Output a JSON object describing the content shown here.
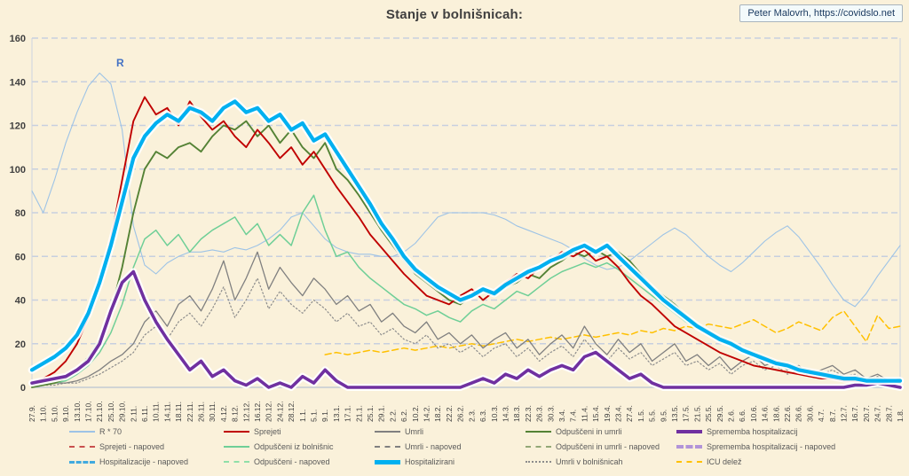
{
  "title": "Stanje v bolnišnicah:",
  "attribution": "Peter Malovrh, https://covidslo.net",
  "annotations": {
    "r_label": "R"
  },
  "chart_data": {
    "type": "line",
    "title": "Stanje v bolnišnicah:",
    "xlabel": "",
    "ylabel": "",
    "ylim": [
      0,
      160
    ],
    "yticks": [
      0,
      20,
      40,
      60,
      80,
      100,
      120,
      140,
      160
    ],
    "grid": "horizontal-dashed",
    "grid_color": "#c7cfdf",
    "background": "#faf1da",
    "legend_position": "bottom",
    "x_tick_labels": [
      "27.9.",
      "1.10.",
      "5.10.",
      "9.10.",
      "13.10.",
      "17.10.",
      "21.10.",
      "25.10.",
      "29.10.",
      "2.11.",
      "6.11.",
      "10.11.",
      "14.11.",
      "18.11.",
      "22.11.",
      "26.11.",
      "30.11.",
      "4.12.",
      "8.12.",
      "12.12.",
      "16.12.",
      "20.12.",
      "24.12.",
      "28.12.",
      "1.1.",
      "5.1.",
      "9.1.",
      "13.1.",
      "17.1.",
      "21.1.",
      "25.1.",
      "29.1.",
      "2.2.",
      "6.2.",
      "10.2.",
      "14.2.",
      "18.2.",
      "22.2.",
      "26.2.",
      "2.3.",
      "6.3.",
      "10.3.",
      "14.3.",
      "18.3.",
      "22.3.",
      "26.3.",
      "30.3.",
      "3.4.",
      "7.4.",
      "11.4.",
      "15.4.",
      "19.4.",
      "23.4.",
      "27.4.",
      "1.5.",
      "5.5.",
      "9.5.",
      "13.5.",
      "17.5.",
      "21.5.",
      "25.5.",
      "29.5.",
      "2.6.",
      "6.6.",
      "10.6.",
      "14.6.",
      "18.6.",
      "22.6.",
      "26.6.",
      "30.6.",
      "4.7.",
      "8.7.",
      "12.7.",
      "16.7.",
      "20.7.",
      "24.7.",
      "28.7.",
      "1.8."
    ],
    "series": [
      {
        "name": "R * 70",
        "color": "#9dc3e6",
        "style": "solid",
        "width": 1.1,
        "halo": false,
        "values": [
          90,
          80,
          95,
          112,
          126,
          138,
          144,
          139,
          118,
          74,
          56,
          52,
          57,
          60,
          62,
          62,
          63,
          62,
          64,
          63,
          65,
          68,
          72,
          78,
          80,
          74,
          68,
          64,
          62,
          61,
          61,
          60,
          60,
          62,
          66,
          72,
          78,
          80,
          80,
          80,
          80,
          79,
          77,
          74,
          72,
          70,
          68,
          66,
          63,
          59,
          56,
          54,
          55,
          58,
          62,
          66,
          70,
          73,
          70,
          65,
          60,
          56,
          53,
          57,
          62,
          67,
          71,
          74,
          69,
          62,
          55,
          47,
          40,
          37,
          43,
          51,
          58,
          65
        ]
      },
      {
        "name": "ICU delež",
        "color": "#ffc000",
        "style": "dashed",
        "width": 1.5,
        "halo": false,
        "values": [
          null,
          null,
          null,
          null,
          null,
          null,
          null,
          null,
          null,
          null,
          null,
          null,
          null,
          null,
          null,
          null,
          null,
          null,
          null,
          null,
          null,
          null,
          null,
          null,
          null,
          null,
          15,
          16,
          15,
          16,
          17,
          16,
          17,
          18,
          17,
          18,
          19,
          18,
          19,
          20,
          19,
          20,
          21,
          22,
          21,
          22,
          23,
          22,
          23,
          24,
          23,
          24,
          25,
          24,
          26,
          25,
          27,
          26,
          28,
          27,
          29,
          28,
          27,
          29,
          31,
          28,
          25,
          27,
          30,
          28,
          26,
          32,
          35,
          28,
          21,
          33,
          27,
          28
        ]
      },
      {
        "name": "Umrli v bolnišnicah",
        "color": "#8c8c8c",
        "style": "dotted",
        "width": 1.2,
        "halo": false,
        "values": [
          1,
          1,
          1,
          2,
          2,
          4,
          6,
          9,
          12,
          16,
          24,
          28,
          22,
          30,
          34,
          28,
          36,
          46,
          32,
          40,
          50,
          36,
          44,
          38,
          34,
          40,
          36,
          30,
          34,
          28,
          30,
          24,
          27,
          22,
          20,
          24,
          18,
          20,
          16,
          19,
          14,
          18,
          20,
          14,
          18,
          12,
          16,
          19,
          14,
          22,
          16,
          12,
          18,
          13,
          16,
          10,
          13,
          16,
          10,
          12,
          8,
          11,
          6,
          10,
          12,
          8,
          10,
          6,
          8,
          5,
          6,
          8,
          5,
          6,
          3,
          5,
          2,
          3
        ]
      },
      {
        "name": "Umrli",
        "color": "#808080",
        "style": "solid",
        "width": 1.3,
        "halo": false,
        "values": [
          1,
          1,
          2,
          2,
          3,
          5,
          8,
          12,
          15,
          20,
          30,
          35,
          28,
          38,
          42,
          35,
          45,
          58,
          40,
          50,
          62,
          45,
          55,
          48,
          42,
          50,
          45,
          38,
          42,
          35,
          38,
          30,
          34,
          28,
          25,
          30,
          22,
          25,
          20,
          24,
          18,
          22,
          25,
          18,
          22,
          15,
          20,
          24,
          18,
          28,
          20,
          15,
          22,
          16,
          20,
          12,
          16,
          20,
          12,
          15,
          10,
          14,
          8,
          12,
          15,
          10,
          12,
          8,
          10,
          6,
          8,
          10,
          6,
          8,
          4,
          6,
          3,
          4
        ]
      },
      {
        "name": "Odpuščeni iz bolnišnic",
        "color": "#6fcf97",
        "style": "solid",
        "width": 1.5,
        "halo": false,
        "values": [
          0,
          1,
          2,
          3,
          6,
          10,
          16,
          25,
          38,
          55,
          68,
          72,
          65,
          70,
          62,
          68,
          72,
          75,
          78,
          70,
          75,
          65,
          70,
          65,
          80,
          88,
          72,
          60,
          62,
          55,
          50,
          46,
          42,
          38,
          36,
          33,
          35,
          32,
          30,
          35,
          38,
          36,
          40,
          44,
          42,
          46,
          50,
          53,
          55,
          57,
          55,
          57,
          54,
          50,
          46,
          42,
          38,
          34,
          30,
          27,
          24,
          21,
          19,
          17,
          15,
          13,
          11,
          10,
          8,
          7,
          6,
          5,
          5,
          4,
          4,
          3,
          3,
          3
        ]
      },
      {
        "name": "Odpuščeni in umrli",
        "color": "#548235",
        "style": "solid",
        "width": 1.9,
        "halo": false,
        "values": [
          0,
          1,
          2,
          4,
          8,
          14,
          22,
          35,
          55,
          80,
          100,
          108,
          105,
          110,
          112,
          108,
          115,
          120,
          118,
          122,
          115,
          120,
          112,
          118,
          110,
          105,
          112,
          100,
          95,
          88,
          80,
          72,
          65,
          58,
          52,
          48,
          44,
          40,
          38,
          42,
          44,
          42,
          46,
          48,
          52,
          50,
          55,
          58,
          62,
          60,
          63,
          60,
          62,
          58,
          52,
          46,
          42,
          38,
          33,
          29,
          26,
          23,
          21,
          18,
          16,
          14,
          12,
          11,
          9,
          8,
          7,
          6,
          5,
          5,
          4,
          4,
          3,
          3
        ]
      },
      {
        "name": "Odpuščeni in umrli - napoved",
        "color": "#93a877",
        "style": "dashed",
        "width": 1.5,
        "halo": false,
        "values": [
          null,
          null,
          null,
          null,
          null,
          null,
          null,
          null,
          null,
          null,
          null,
          null,
          null,
          null,
          null,
          null,
          null,
          null,
          null,
          null,
          null,
          null,
          null,
          null,
          null,
          null,
          null,
          null,
          null,
          null,
          null,
          null,
          null,
          null,
          null,
          null,
          null,
          null,
          null,
          null,
          null,
          null,
          null,
          null,
          null,
          null,
          null,
          null,
          null,
          null,
          null,
          null,
          null,
          null,
          null,
          null,
          null,
          null,
          null,
          null,
          null,
          null,
          null,
          null,
          null,
          null,
          null,
          null,
          null,
          null,
          null,
          null,
          null,
          null,
          4,
          3,
          3,
          3
        ]
      },
      {
        "name": "Sprejeti",
        "color": "#c00000",
        "style": "solid",
        "width": 1.9,
        "halo": false,
        "values": [
          2,
          4,
          7,
          12,
          20,
          32,
          48,
          68,
          95,
          122,
          133,
          125,
          128,
          120,
          131,
          124,
          118,
          122,
          115,
          110,
          118,
          112,
          105,
          110,
          102,
          108,
          100,
          92,
          85,
          78,
          70,
          64,
          58,
          52,
          47,
          42,
          40,
          38,
          42,
          45,
          40,
          44,
          48,
          52,
          50,
          55,
          58,
          62,
          60,
          63,
          58,
          60,
          55,
          48,
          42,
          38,
          33,
          28,
          25,
          22,
          19,
          16,
          14,
          12,
          10,
          9,
          8,
          7,
          6,
          5,
          4,
          4,
          3,
          3,
          2,
          2,
          2,
          2
        ]
      },
      {
        "name": "Sprememba hospitalizacij",
        "color": "#7030a0",
        "style": "solid",
        "width": 3.6,
        "halo": true,
        "values": [
          2,
          3,
          4,
          5,
          8,
          12,
          20,
          35,
          48,
          53,
          40,
          30,
          22,
          15,
          8,
          12,
          5,
          8,
          3,
          1,
          4,
          0,
          2,
          0,
          5,
          2,
          8,
          3,
          0,
          0,
          0,
          0,
          0,
          0,
          0,
          0,
          0,
          0,
          0,
          2,
          4,
          2,
          6,
          4,
          8,
          5,
          8,
          10,
          8,
          14,
          16,
          12,
          8,
          4,
          6,
          2,
          0,
          0,
          0,
          0,
          0,
          0,
          0,
          0,
          0,
          0,
          0,
          0,
          0,
          0,
          0,
          0,
          0,
          1,
          1,
          2,
          1,
          0
        ]
      },
      {
        "name": "Hospitalizirani",
        "color": "#00b0f0",
        "style": "solid",
        "width": 4.2,
        "halo": true,
        "values": [
          8,
          11,
          14,
          18,
          24,
          34,
          48,
          65,
          85,
          105,
          115,
          121,
          125,
          122,
          128,
          126,
          122,
          128,
          131,
          126,
          128,
          122,
          125,
          118,
          121,
          113,
          116,
          108,
          100,
          92,
          84,
          75,
          68,
          60,
          54,
          50,
          46,
          43,
          40,
          42,
          45,
          43,
          47,
          50,
          53,
          55,
          58,
          60,
          63,
          65,
          62,
          65,
          60,
          55,
          50,
          45,
          40,
          36,
          32,
          28,
          25,
          22,
          20,
          17,
          15,
          13,
          11,
          10,
          8,
          7,
          6,
          5,
          4,
          4,
          3,
          3,
          3,
          3
        ]
      }
    ],
    "legend": [
      {
        "label": "R * 70",
        "color": "#9dc3e6",
        "dash": "solid",
        "weight": 2
      },
      {
        "label": "Sprejeti",
        "color": "#c00000",
        "dash": "solid",
        "weight": 2
      },
      {
        "label": "Umrli",
        "color": "#808080",
        "dash": "solid",
        "weight": 2
      },
      {
        "label": "Odpuščeni in umrli",
        "color": "#548235",
        "dash": "solid",
        "weight": 2
      },
      {
        "label": "Sprememba hospitalizacij",
        "color": "#7030a0",
        "dash": "solid",
        "weight": 4
      },
      {
        "label": "Sprejeti - napoved",
        "color": "#c9504e",
        "dash": "dashed",
        "weight": 2
      },
      {
        "label": "Odpuščeni iz bolnišnic",
        "color": "#6fcf97",
        "dash": "solid",
        "weight": 2
      },
      {
        "label": "Umrli - napoved",
        "color": "#808080",
        "dash": "dashed",
        "weight": 2
      },
      {
        "label": "Odpuščeni in umrli - napoved",
        "color": "#93a877",
        "dash": "dashed",
        "weight": 2
      },
      {
        "label": "Sprememba hospitalizacij - napoved",
        "color": "#b294d8",
        "dash": "dashed",
        "weight": 4
      },
      {
        "label": "Hospitalizacije - napoved",
        "color": "#41aadf",
        "dash": "dashed",
        "weight": 3
      },
      {
        "label": "Odpuščeni - napoved",
        "color": "#8fdfa8",
        "dash": "dashed",
        "weight": 2
      },
      {
        "label": "Hospitalizirani",
        "color": "#00b0f0",
        "dash": "solid",
        "weight": 5
      },
      {
        "label": "Umrli v bolnišnicah",
        "color": "#8c8c8c",
        "dash": "dotted",
        "weight": 2
      },
      {
        "label": "ICU delež",
        "color": "#ffc000",
        "dash": "dashed",
        "weight": 2
      }
    ]
  }
}
